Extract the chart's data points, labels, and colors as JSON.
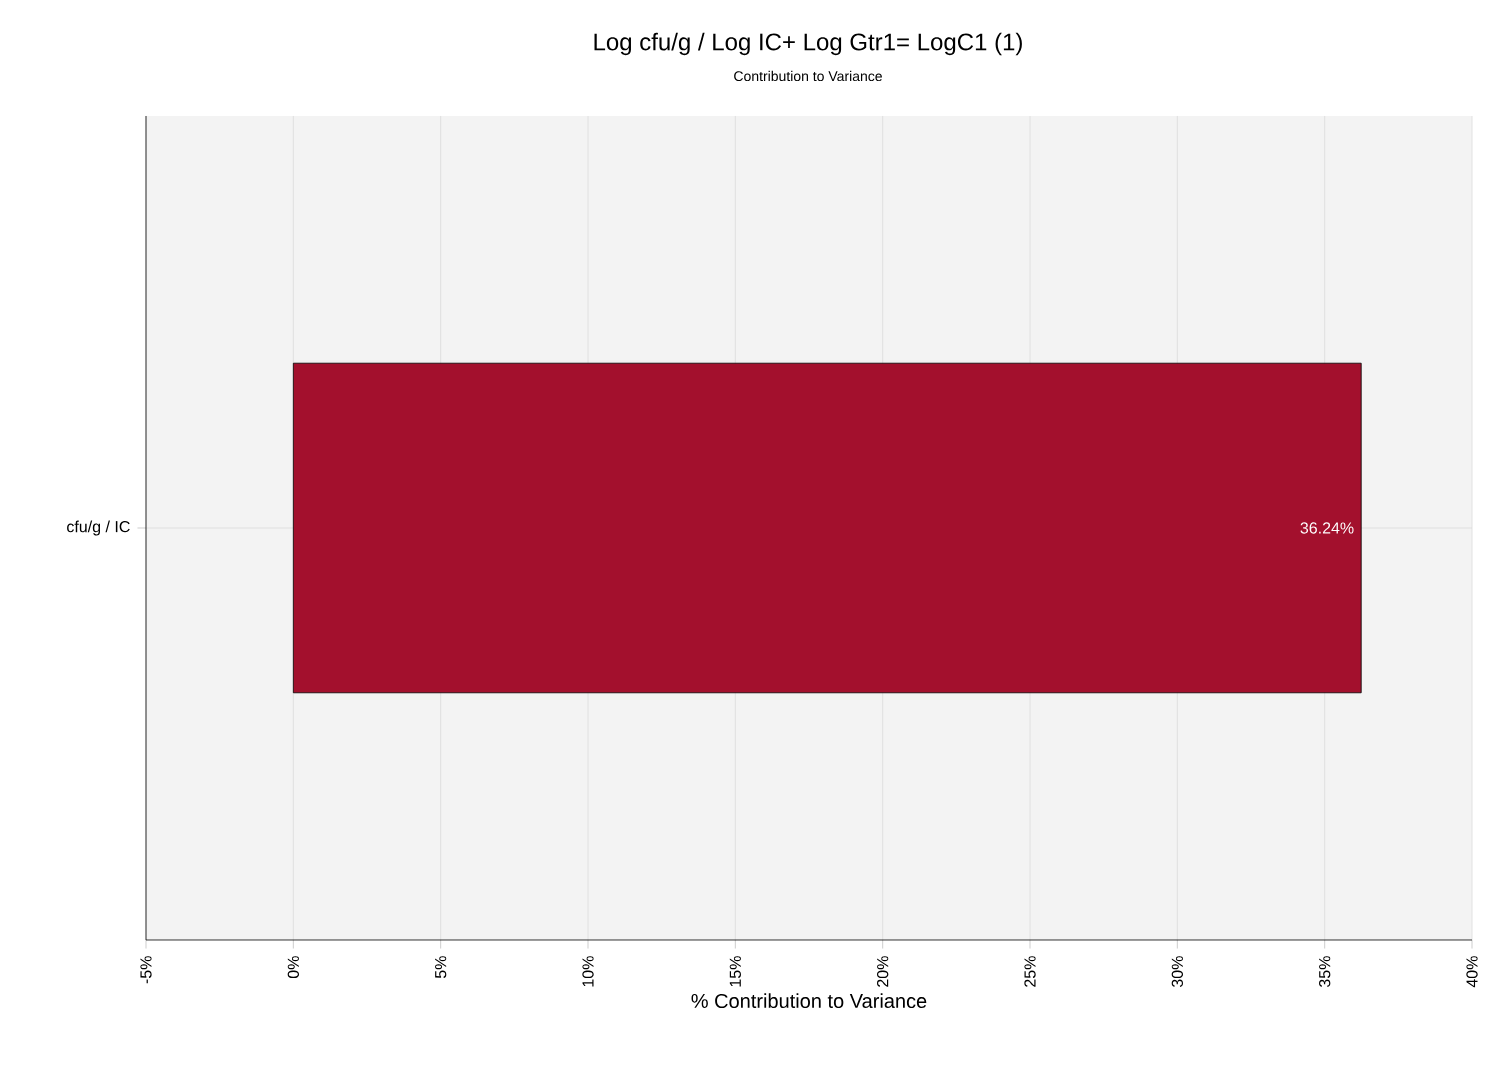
{
  "chart_data": {
    "type": "bar",
    "orientation": "horizontal",
    "title": "Log cfu/g / Log IC+ Log Gtr1= LogC1 (1)",
    "subtitle": "Contribution to Variance",
    "xlabel": "% Contribution to Variance",
    "categories": [
      "cfu/g / IC"
    ],
    "values": [
      36.24
    ],
    "value_labels": [
      "36.24%"
    ],
    "color": "#a3102d",
    "xlim": [
      -5,
      40
    ],
    "xticks": [
      {
        "value": -5,
        "label": "-5%"
      },
      {
        "value": 0,
        "label": "0%"
      },
      {
        "value": 5,
        "label": "5%"
      },
      {
        "value": 10,
        "label": "10%"
      },
      {
        "value": 15,
        "label": "15%"
      },
      {
        "value": 20,
        "label": "20%"
      },
      {
        "value": 25,
        "label": "25%"
      },
      {
        "value": 30,
        "label": "30%"
      },
      {
        "value": 35,
        "label": "35%"
      },
      {
        "value": 40,
        "label": "40%"
      }
    ],
    "grid": true
  }
}
